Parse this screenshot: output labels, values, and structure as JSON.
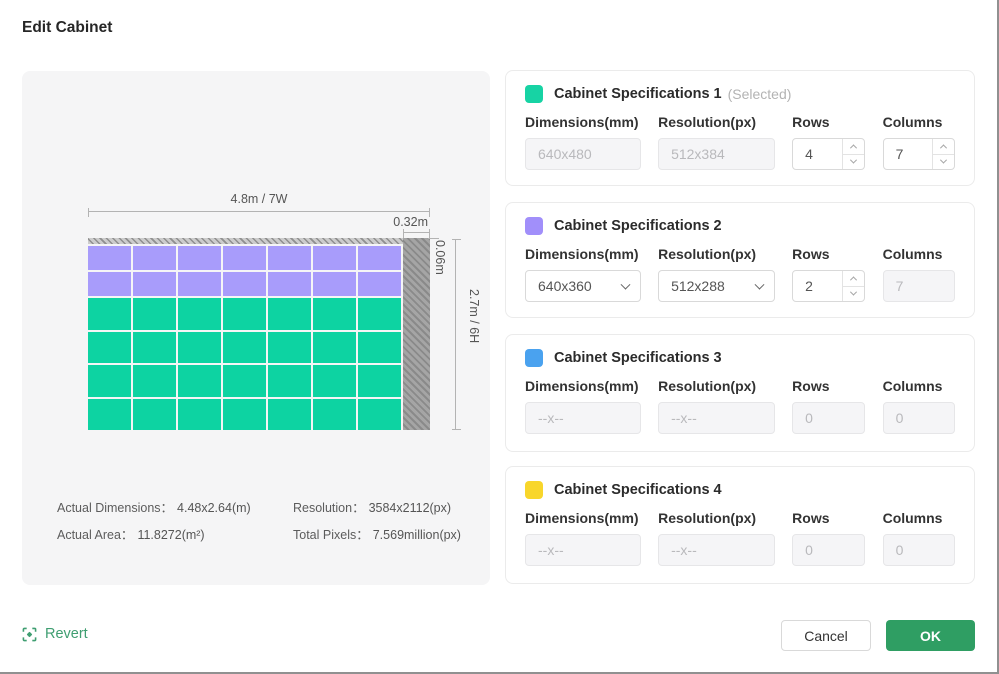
{
  "dialog": {
    "title": "Edit Cabinet"
  },
  "preview": {
    "dim_width_label": "4.8m / 7W",
    "dim_offset_label": "0.32m",
    "dim_strip_label": "0.06m",
    "dim_height_label": "2.7m / 6H",
    "grid": {
      "columns": 7,
      "purple_rows": 2,
      "green_rows": 4,
      "purple_color": "#a89cfb",
      "green_color": "#0dd3a2",
      "hatch_color": "#9a9a9a"
    },
    "stats": [
      {
        "label": "Actual Dimensions：",
        "value": "4.48x2.64(m)"
      },
      {
        "label": "Resolution：",
        "value": "3584x2112(px)"
      },
      {
        "label": "Actual Area：",
        "value": "11.8272(m²)"
      },
      {
        "label": "Total Pixels：",
        "value": "7.569million(px)"
      }
    ]
  },
  "cards": [
    {
      "title": "Cabinet Specifications 1",
      "selected_label": "(Selected)",
      "swatch_color": "#17d3a4",
      "fields": {
        "dimensions": {
          "label": "Dimensions(mm)",
          "value": "640x480"
        },
        "resolution": {
          "label": "Resolution(px)",
          "value": "512x384"
        },
        "rows": {
          "label": "Rows",
          "value": "4"
        },
        "columns": {
          "label": "Columns",
          "value": "7"
        }
      }
    },
    {
      "title": "Cabinet Specifications 2",
      "swatch_color": "#a18ffa",
      "fields": {
        "dimensions": {
          "label": "Dimensions(mm)",
          "value": "640x360"
        },
        "resolution": {
          "label": "Resolution(px)",
          "value": "512x288"
        },
        "rows": {
          "label": "Rows",
          "value": "2"
        },
        "columns": {
          "label": "Columns",
          "value": "7"
        }
      }
    },
    {
      "title": "Cabinet Specifications 3",
      "swatch_color": "#4aa2ef",
      "fields": {
        "dimensions": {
          "label": "Dimensions(mm)",
          "value": "--x--"
        },
        "resolution": {
          "label": "Resolution(px)",
          "value": "--x--"
        },
        "rows": {
          "label": "Rows",
          "value": "0"
        },
        "columns": {
          "label": "Columns",
          "value": "0"
        }
      }
    },
    {
      "title": "Cabinet Specifications 4",
      "swatch_color": "#f8d62b",
      "fields": {
        "dimensions": {
          "label": "Dimensions(mm)",
          "value": "--x--"
        },
        "resolution": {
          "label": "Resolution(px)",
          "value": "--x--"
        },
        "rows": {
          "label": "Rows",
          "value": "0"
        },
        "columns": {
          "label": "Columns",
          "value": "0"
        }
      }
    }
  ],
  "footer": {
    "revert_label": "Revert",
    "revert_color": "#3f9e71",
    "cancel_label": "Cancel",
    "ok_label": "OK",
    "ok_color": "#2f9e63"
  }
}
